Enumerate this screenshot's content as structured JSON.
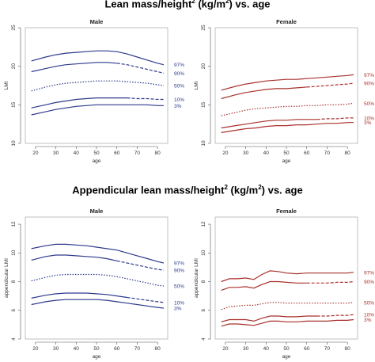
{
  "titles": {
    "top_pre": "Lean mass/height",
    "top_sup": "2",
    "top_mid": " (kg/m",
    "top_sup2": "2",
    "top_post": ") vs. age",
    "bottom_pre": "Appendicular lean mass/height",
    "bottom_sup": "2",
    "bottom_mid": " (kg/m",
    "bottom_sup2": "2",
    "bottom_post": ") vs. age"
  },
  "colors": {
    "male": "#2e3a8c",
    "female": "#a8322d"
  },
  "chart_data": [
    {
      "type": "line",
      "title": "Male",
      "xlabel": "age",
      "ylabel": "LMI",
      "xlim": [
        15,
        85
      ],
      "ylim": [
        10,
        25
      ],
      "xticks": [
        20,
        30,
        40,
        50,
        60,
        70,
        80
      ],
      "yticks": [
        10,
        15,
        20,
        25
      ],
      "color": "#2e3a8c",
      "x": [
        18,
        25,
        30,
        35,
        40,
        45,
        50,
        55,
        60,
        65,
        70,
        75,
        80,
        83
      ],
      "series": [
        {
          "name": "97%",
          "values": [
            20.7,
            21.2,
            21.5,
            21.7,
            21.8,
            21.9,
            22.0,
            22.0,
            21.9,
            21.6,
            21.2,
            20.8,
            20.4,
            20.2
          ]
        },
        {
          "name": "90%",
          "values": [
            19.3,
            19.7,
            20.0,
            20.2,
            20.3,
            20.4,
            20.5,
            20.5,
            20.4,
            20.2,
            19.9,
            19.6,
            19.3,
            19.1
          ]
        },
        {
          "name": "50%",
          "values": [
            16.8,
            17.3,
            17.6,
            17.8,
            17.9,
            18.0,
            18.1,
            18.1,
            18.1,
            18.0,
            17.9,
            17.8,
            17.6,
            17.5
          ]
        },
        {
          "name": "10%",
          "values": [
            14.6,
            15.0,
            15.3,
            15.5,
            15.7,
            15.8,
            15.9,
            15.9,
            15.9,
            15.9,
            15.8,
            15.8,
            15.7,
            15.7
          ]
        },
        {
          "name": "3%",
          "values": [
            13.7,
            14.1,
            14.4,
            14.6,
            14.8,
            14.9,
            15.0,
            15.0,
            15.0,
            15.0,
            15.0,
            15.0,
            14.9,
            14.9
          ]
        }
      ]
    },
    {
      "type": "line",
      "title": "Female",
      "xlabel": "age",
      "ylabel": "LMI",
      "xlim": [
        15,
        85
      ],
      "ylim": [
        10,
        25
      ],
      "xticks": [
        20,
        30,
        40,
        50,
        60,
        70,
        80
      ],
      "yticks": [
        10,
        15,
        20,
        25
      ],
      "color": "#a8322d",
      "x": [
        18,
        25,
        30,
        35,
        40,
        45,
        50,
        55,
        60,
        65,
        70,
        75,
        80,
        83
      ],
      "series": [
        {
          "name": "97%",
          "values": [
            16.9,
            17.4,
            17.7,
            17.9,
            18.1,
            18.2,
            18.3,
            18.3,
            18.4,
            18.5,
            18.6,
            18.7,
            18.8,
            18.9
          ]
        },
        {
          "name": "90%",
          "values": [
            15.8,
            16.3,
            16.6,
            16.8,
            17.0,
            17.1,
            17.1,
            17.2,
            17.3,
            17.4,
            17.5,
            17.6,
            17.7,
            17.8
          ]
        },
        {
          "name": "50%",
          "values": [
            13.6,
            14.0,
            14.3,
            14.5,
            14.6,
            14.7,
            14.8,
            14.8,
            14.9,
            14.9,
            15.0,
            15.0,
            15.1,
            15.2
          ]
        },
        {
          "name": "10%",
          "values": [
            12.0,
            12.3,
            12.5,
            12.7,
            12.9,
            13.0,
            13.0,
            13.1,
            13.1,
            13.1,
            13.2,
            13.2,
            13.3,
            13.3
          ]
        },
        {
          "name": "3%",
          "values": [
            11.4,
            11.7,
            11.9,
            12.0,
            12.2,
            12.3,
            12.3,
            12.4,
            12.4,
            12.5,
            12.6,
            12.6,
            12.7,
            12.7
          ]
        }
      ]
    },
    {
      "type": "line",
      "title": "Male",
      "xlabel": "age",
      "ylabel": "appendicular LMI",
      "xlim": [
        15,
        85
      ],
      "ylim": [
        4,
        12.5
      ],
      "xticks": [
        20,
        30,
        40,
        50,
        60,
        70,
        80
      ],
      "yticks": [
        4,
        6,
        8,
        10,
        12
      ],
      "color": "#2e3a8c",
      "x": [
        18,
        25,
        30,
        35,
        40,
        45,
        50,
        55,
        60,
        65,
        70,
        75,
        80,
        83
      ],
      "series": [
        {
          "name": "97%",
          "values": [
            10.3,
            10.5,
            10.6,
            10.6,
            10.55,
            10.5,
            10.4,
            10.3,
            10.2,
            10.0,
            9.8,
            9.6,
            9.4,
            9.3
          ]
        },
        {
          "name": "90%",
          "values": [
            9.5,
            9.75,
            9.85,
            9.85,
            9.8,
            9.75,
            9.7,
            9.6,
            9.45,
            9.3,
            9.15,
            9.0,
            8.85,
            8.8
          ]
        },
        {
          "name": "50%",
          "values": [
            8.05,
            8.3,
            8.45,
            8.5,
            8.5,
            8.5,
            8.5,
            8.45,
            8.35,
            8.2,
            8.05,
            7.9,
            7.75,
            7.7
          ]
        },
        {
          "name": "10%",
          "values": [
            6.85,
            7.05,
            7.15,
            7.2,
            7.2,
            7.2,
            7.15,
            7.1,
            7.0,
            6.9,
            6.8,
            6.7,
            6.6,
            6.55
          ]
        },
        {
          "name": "3%",
          "values": [
            6.4,
            6.6,
            6.7,
            6.75,
            6.75,
            6.75,
            6.75,
            6.7,
            6.6,
            6.5,
            6.4,
            6.3,
            6.2,
            6.15
          ]
        }
      ]
    },
    {
      "type": "line",
      "title": "Female",
      "xlabel": "age",
      "ylabel": "appendicular LMI",
      "xlim": [
        15,
        85
      ],
      "ylim": [
        4,
        12.5
      ],
      "xticks": [
        20,
        30,
        40,
        50,
        60,
        70,
        80
      ],
      "yticks": [
        4,
        6,
        8,
        10,
        12
      ],
      "color": "#a8322d",
      "x": [
        18,
        22,
        26,
        30,
        34,
        38,
        42,
        46,
        50,
        55,
        60,
        65,
        70,
        75,
        80,
        83
      ],
      "series": [
        {
          "name": "97%",
          "values": [
            8.0,
            8.2,
            8.2,
            8.25,
            8.15,
            8.5,
            8.75,
            8.7,
            8.6,
            8.55,
            8.6,
            8.6,
            8.6,
            8.6,
            8.6,
            8.65
          ]
        },
        {
          "name": "90%",
          "values": [
            7.4,
            7.6,
            7.6,
            7.65,
            7.55,
            7.8,
            8.0,
            8.0,
            7.95,
            7.9,
            7.9,
            7.9,
            7.9,
            7.95,
            7.95,
            8.0
          ]
        },
        {
          "name": "50%",
          "values": [
            6.05,
            6.25,
            6.3,
            6.35,
            6.35,
            6.45,
            6.55,
            6.55,
            6.5,
            6.5,
            6.5,
            6.5,
            6.5,
            6.5,
            6.5,
            6.55
          ]
        },
        {
          "name": "10%",
          "values": [
            5.2,
            5.35,
            5.35,
            5.35,
            5.25,
            5.45,
            5.6,
            5.6,
            5.55,
            5.55,
            5.6,
            5.6,
            5.6,
            5.65,
            5.65,
            5.7
          ]
        },
        {
          "name": "3%",
          "values": [
            4.9,
            5.05,
            5.05,
            5.0,
            4.95,
            5.1,
            5.25,
            5.25,
            5.2,
            5.2,
            5.25,
            5.25,
            5.25,
            5.3,
            5.3,
            5.35
          ]
        }
      ]
    }
  ]
}
